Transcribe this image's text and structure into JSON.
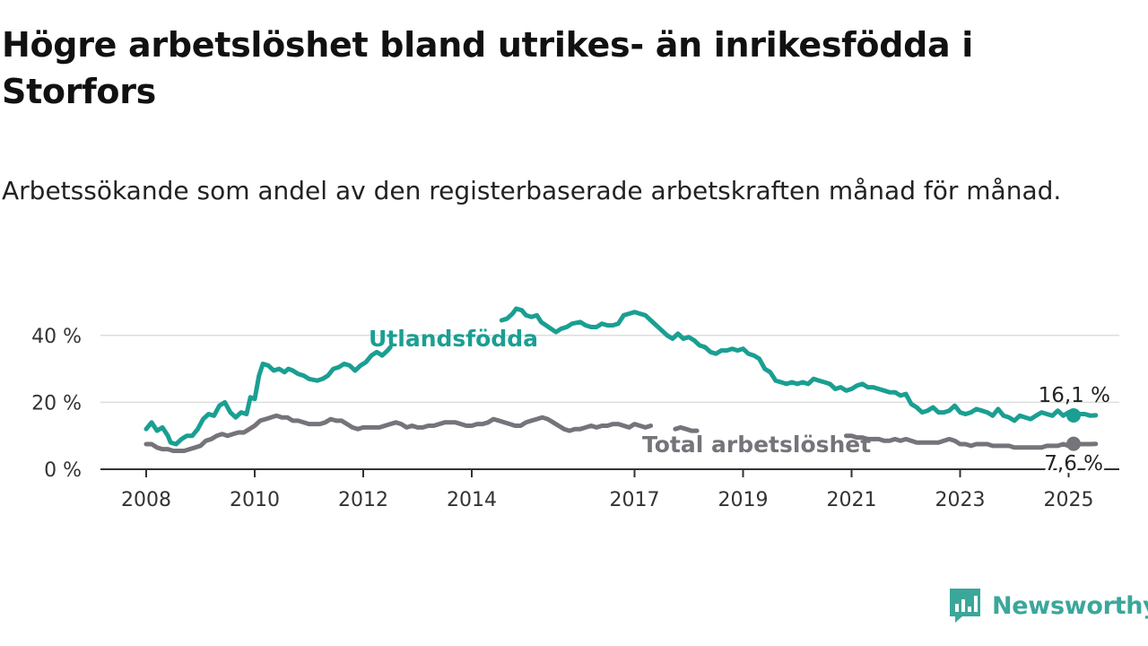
{
  "title": "Högre arbetslöshet bland utrikes- än inrikesfödda i Storfors",
  "subtitle": "Arbetssökande som andel av den registerbaserade arbetskraften månad för månad.",
  "brand": "Newsworthy",
  "colors": {
    "foreign": "#1a9f92",
    "total": "#76737a",
    "grid": "#dddddd",
    "axis": "#333333",
    "brand": "#3aa79a"
  },
  "chart_data": {
    "type": "line",
    "xlabel": "",
    "ylabel": "",
    "x_range": [
      2008.0,
      2025.0
    ],
    "ylim": [
      0,
      50
    ],
    "y_ticks": [
      0,
      20,
      40
    ],
    "y_tick_labels": [
      "0 %",
      "20 %",
      "40 %"
    ],
    "x_ticks": [
      2008,
      2010,
      2012,
      2014,
      2017,
      2019,
      2021,
      2023,
      2025
    ],
    "x_tick_labels": [
      "2008",
      "2010",
      "2012",
      "2014",
      "2017",
      "2019",
      "2021",
      "2023",
      "2025"
    ],
    "grid": true,
    "series": [
      {
        "key": "foreign",
        "name": "Utlandsfödda",
        "end_label": "16,1 %",
        "points": [
          [
            2008.0,
            12
          ],
          [
            2008.1,
            14
          ],
          [
            2008.2,
            11.5
          ],
          [
            2008.3,
            12.5
          ],
          [
            2008.4,
            10
          ],
          [
            2008.45,
            8
          ],
          [
            2008.55,
            7.5
          ],
          [
            2008.65,
            9
          ],
          [
            2008.75,
            10
          ],
          [
            2008.85,
            10
          ],
          [
            2008.95,
            12
          ],
          [
            2009.05,
            15
          ],
          [
            2009.15,
            16.5
          ],
          [
            2009.25,
            16
          ],
          [
            2009.35,
            19
          ],
          [
            2009.45,
            20
          ],
          [
            2009.55,
            17
          ],
          [
            2009.65,
            15.5
          ],
          [
            2009.75,
            17
          ],
          [
            2009.85,
            16.5
          ],
          [
            2009.92,
            21.5
          ],
          [
            2010.0,
            21
          ],
          [
            2010.08,
            28
          ],
          [
            2010.15,
            31.5
          ],
          [
            2010.25,
            31
          ],
          [
            2010.35,
            29.5
          ],
          [
            2010.45,
            30
          ],
          [
            2010.55,
            29
          ],
          [
            2010.62,
            30
          ],
          [
            2010.7,
            29.5
          ],
          [
            2010.8,
            28.5
          ],
          [
            2010.9,
            28
          ],
          [
            2011.0,
            27
          ],
          [
            2011.15,
            26.5
          ],
          [
            2011.25,
            27
          ],
          [
            2011.35,
            28
          ],
          [
            2011.45,
            30
          ],
          [
            2011.55,
            30.5
          ],
          [
            2011.65,
            31.5
          ],
          [
            2011.75,
            31
          ],
          [
            2011.85,
            29.5
          ],
          [
            2011.95,
            31
          ],
          [
            2012.05,
            32
          ],
          [
            2012.15,
            34
          ],
          [
            2012.25,
            35
          ],
          [
            2012.35,
            34
          ],
          [
            2012.45,
            35.5
          ],
          [
            2012.5,
            36.5
          ],
          [
            2014.55,
            44.5
          ],
          [
            2014.65,
            45
          ],
          [
            2014.75,
            46.5
          ],
          [
            2014.82,
            48
          ],
          [
            2014.92,
            47.5
          ],
          [
            2015.0,
            46
          ],
          [
            2015.1,
            45.5
          ],
          [
            2015.2,
            46
          ],
          [
            2015.28,
            44
          ],
          [
            2015.55,
            41
          ],
          [
            2015.65,
            42
          ],
          [
            2015.75,
            42.5
          ],
          [
            2015.85,
            43.5
          ],
          [
            2016.0,
            44
          ],
          [
            2016.1,
            43
          ],
          [
            2016.2,
            42.5
          ],
          [
            2016.3,
            42.5
          ],
          [
            2016.4,
            43.5
          ],
          [
            2016.5,
            43
          ],
          [
            2016.6,
            43
          ],
          [
            2016.7,
            43.5
          ],
          [
            2016.8,
            46
          ],
          [
            2016.9,
            46.5
          ],
          [
            2017.0,
            47
          ],
          [
            2017.1,
            46.5
          ],
          [
            2017.2,
            46
          ],
          [
            2017.3,
            44.5
          ],
          [
            2017.4,
            43
          ],
          [
            2017.5,
            41.5
          ],
          [
            2017.6,
            40
          ],
          [
            2017.7,
            39
          ],
          [
            2017.8,
            40.5
          ],
          [
            2017.9,
            39
          ],
          [
            2018.0,
            39.5
          ],
          [
            2018.1,
            38.5
          ],
          [
            2018.2,
            37
          ],
          [
            2018.3,
            36.5
          ],
          [
            2018.4,
            35
          ],
          [
            2018.5,
            34.5
          ],
          [
            2018.6,
            35.5
          ],
          [
            2018.7,
            35.5
          ],
          [
            2018.8,
            36
          ],
          [
            2018.9,
            35.5
          ],
          [
            2019.0,
            36
          ],
          [
            2019.1,
            34.5
          ],
          [
            2019.2,
            34
          ],
          [
            2019.3,
            33
          ],
          [
            2019.4,
            30
          ],
          [
            2019.5,
            29
          ],
          [
            2019.6,
            26.5
          ],
          [
            2019.7,
            26
          ],
          [
            2019.8,
            25.5
          ],
          [
            2019.9,
            26
          ],
          [
            2020.0,
            25.5
          ],
          [
            2020.1,
            26
          ],
          [
            2020.2,
            25.5
          ],
          [
            2020.3,
            27
          ],
          [
            2020.4,
            26.5
          ],
          [
            2020.5,
            26
          ],
          [
            2020.6,
            25.5
          ],
          [
            2020.7,
            24
          ],
          [
            2020.8,
            24.5
          ],
          [
            2020.9,
            23.5
          ],
          [
            2021.0,
            24
          ],
          [
            2021.1,
            25
          ],
          [
            2021.2,
            25.5
          ],
          [
            2021.3,
            24.5
          ],
          [
            2021.4,
            24.5
          ],
          [
            2021.5,
            24
          ],
          [
            2021.6,
            23.5
          ],
          [
            2021.7,
            23
          ],
          [
            2021.8,
            23
          ],
          [
            2021.9,
            22
          ],
          [
            2022.0,
            22.5
          ],
          [
            2022.1,
            19.5
          ],
          [
            2022.2,
            18.5
          ],
          [
            2022.3,
            17
          ],
          [
            2022.4,
            17.5
          ],
          [
            2022.5,
            18.5
          ],
          [
            2022.6,
            17
          ],
          [
            2022.7,
            17
          ],
          [
            2022.8,
            17.5
          ],
          [
            2022.9,
            19
          ],
          [
            2023.0,
            17
          ],
          [
            2023.1,
            16.5
          ],
          [
            2023.2,
            17
          ],
          [
            2023.3,
            18
          ],
          [
            2023.4,
            17.5
          ],
          [
            2023.5,
            17
          ],
          [
            2023.6,
            16
          ],
          [
            2023.7,
            18
          ],
          [
            2023.8,
            16
          ],
          [
            2023.9,
            15.5
          ],
          [
            2024.0,
            14.5
          ],
          [
            2024.1,
            16
          ],
          [
            2024.2,
            15.5
          ],
          [
            2024.3,
            15
          ],
          [
            2024.4,
            16
          ],
          [
            2024.5,
            17
          ],
          [
            2024.6,
            16.5
          ],
          [
            2024.7,
            16
          ],
          [
            2024.8,
            17.5
          ],
          [
            2024.9,
            16
          ],
          [
            2025.0,
            17
          ],
          [
            2025.1,
            15.5
          ],
          [
            2025.2,
            16.5
          ],
          [
            2025.3,
            16.5
          ],
          [
            2025.4,
            16
          ],
          [
            2025.5,
            16.1
          ]
        ]
      },
      {
        "key": "total",
        "name": "Total arbetslöshet",
        "end_label": "7,6 %",
        "points": [
          [
            2008.0,
            7.5
          ],
          [
            2008.1,
            7.5
          ],
          [
            2008.2,
            6.5
          ],
          [
            2008.3,
            6
          ],
          [
            2008.4,
            6
          ],
          [
            2008.5,
            5.5
          ],
          [
            2008.6,
            5.5
          ],
          [
            2008.7,
            5.5
          ],
          [
            2008.8,
            6
          ],
          [
            2008.9,
            6.5
          ],
          [
            2009.0,
            7
          ],
          [
            2009.1,
            8.5
          ],
          [
            2009.2,
            9
          ],
          [
            2009.3,
            10
          ],
          [
            2009.4,
            10.5
          ],
          [
            2009.5,
            10
          ],
          [
            2009.6,
            10.5
          ],
          [
            2009.7,
            11
          ],
          [
            2009.8,
            11
          ],
          [
            2009.9,
            12
          ],
          [
            2010.0,
            13
          ],
          [
            2010.1,
            14.5
          ],
          [
            2010.2,
            15
          ],
          [
            2010.3,
            15.5
          ],
          [
            2010.4,
            16
          ],
          [
            2010.5,
            15.5
          ],
          [
            2010.6,
            15.5
          ],
          [
            2010.7,
            14.5
          ],
          [
            2010.8,
            14.5
          ],
          [
            2010.9,
            14
          ],
          [
            2011.0,
            13.5
          ],
          [
            2011.1,
            13.5
          ],
          [
            2011.2,
            13.5
          ],
          [
            2011.3,
            14
          ],
          [
            2011.4,
            15
          ],
          [
            2011.5,
            14.5
          ],
          [
            2011.6,
            14.5
          ],
          [
            2011.7,
            13.5
          ],
          [
            2011.8,
            12.5
          ],
          [
            2011.9,
            12
          ],
          [
            2012.0,
            12.5
          ],
          [
            2012.1,
            12.5
          ],
          [
            2012.2,
            12.5
          ],
          [
            2012.3,
            12.5
          ],
          [
            2012.4,
            13
          ],
          [
            2012.5,
            13.5
          ],
          [
            2012.6,
            14
          ],
          [
            2012.7,
            13.5
          ],
          [
            2012.8,
            12.5
          ],
          [
            2012.9,
            13
          ],
          [
            2013.0,
            12.5
          ],
          [
            2013.1,
            12.5
          ],
          [
            2013.2,
            13
          ],
          [
            2013.3,
            13
          ],
          [
            2013.4,
            13.5
          ],
          [
            2013.5,
            14
          ],
          [
            2013.6,
            14
          ],
          [
            2013.7,
            14
          ],
          [
            2013.8,
            13.5
          ],
          [
            2013.9,
            13
          ],
          [
            2014.0,
            13
          ],
          [
            2014.1,
            13.5
          ],
          [
            2014.2,
            13.5
          ],
          [
            2014.3,
            14
          ],
          [
            2014.4,
            15
          ],
          [
            2014.5,
            14.5
          ],
          [
            2014.6,
            14
          ],
          [
            2014.7,
            13.5
          ],
          [
            2014.8,
            13
          ],
          [
            2014.9,
            13
          ],
          [
            2015.0,
            14
          ],
          [
            2015.1,
            14.5
          ],
          [
            2015.2,
            15
          ],
          [
            2015.3,
            15.5
          ],
          [
            2015.4,
            15
          ],
          [
            2015.5,
            14
          ],
          [
            2015.6,
            13
          ],
          [
            2015.7,
            12
          ],
          [
            2015.8,
            11.5
          ],
          [
            2015.9,
            12
          ],
          [
            2016.0,
            12
          ],
          [
            2016.1,
            12.5
          ],
          [
            2016.2,
            13
          ],
          [
            2016.3,
            12.5
          ],
          [
            2016.4,
            13
          ],
          [
            2016.5,
            13
          ],
          [
            2016.6,
            13.5
          ],
          [
            2016.7,
            13.5
          ],
          [
            2016.8,
            13
          ],
          [
            2016.9,
            12.5
          ],
          [
            2017.0,
            13.5
          ],
          [
            2017.1,
            13
          ],
          [
            2017.2,
            12.5
          ],
          [
            2017.3,
            13
          ],
          [
            2017.75,
            12
          ],
          [
            2017.85,
            12.5
          ],
          [
            2017.95,
            12
          ],
          [
            2018.05,
            11.5
          ],
          [
            2018.15,
            11.5
          ],
          [
            2020.9,
            10
          ],
          [
            2021.0,
            10
          ],
          [
            2021.1,
            9.5
          ],
          [
            2021.2,
            9.5
          ],
          [
            2021.3,
            9
          ],
          [
            2021.4,
            9
          ],
          [
            2021.5,
            9
          ],
          [
            2021.6,
            8.5
          ],
          [
            2021.7,
            8.5
          ],
          [
            2021.8,
            9
          ],
          [
            2021.9,
            8.5
          ],
          [
            2022.0,
            9
          ],
          [
            2022.1,
            8.5
          ],
          [
            2022.2,
            8
          ],
          [
            2022.3,
            8
          ],
          [
            2022.4,
            8
          ],
          [
            2022.5,
            8
          ],
          [
            2022.6,
            8
          ],
          [
            2022.7,
            8.5
          ],
          [
            2022.8,
            9
          ],
          [
            2022.9,
            8.5
          ],
          [
            2023.0,
            7.5
          ],
          [
            2023.1,
            7.5
          ],
          [
            2023.2,
            7
          ],
          [
            2023.3,
            7.5
          ],
          [
            2023.4,
            7.5
          ],
          [
            2023.5,
            7.5
          ],
          [
            2023.6,
            7
          ],
          [
            2023.7,
            7
          ],
          [
            2023.8,
            7
          ],
          [
            2023.9,
            7
          ],
          [
            2024.0,
            6.5
          ],
          [
            2024.1,
            6.5
          ],
          [
            2024.2,
            6.5
          ],
          [
            2024.3,
            6.5
          ],
          [
            2024.4,
            6.5
          ],
          [
            2024.5,
            6.5
          ],
          [
            2024.6,
            7
          ],
          [
            2024.7,
            7
          ],
          [
            2024.8,
            7
          ],
          [
            2024.9,
            7.5
          ],
          [
            2025.0,
            7
          ],
          [
            2025.1,
            7.5
          ],
          [
            2025.2,
            7.5
          ],
          [
            2025.3,
            7.5
          ],
          [
            2025.4,
            7.5
          ],
          [
            2025.5,
            7.6
          ]
        ]
      }
    ]
  }
}
